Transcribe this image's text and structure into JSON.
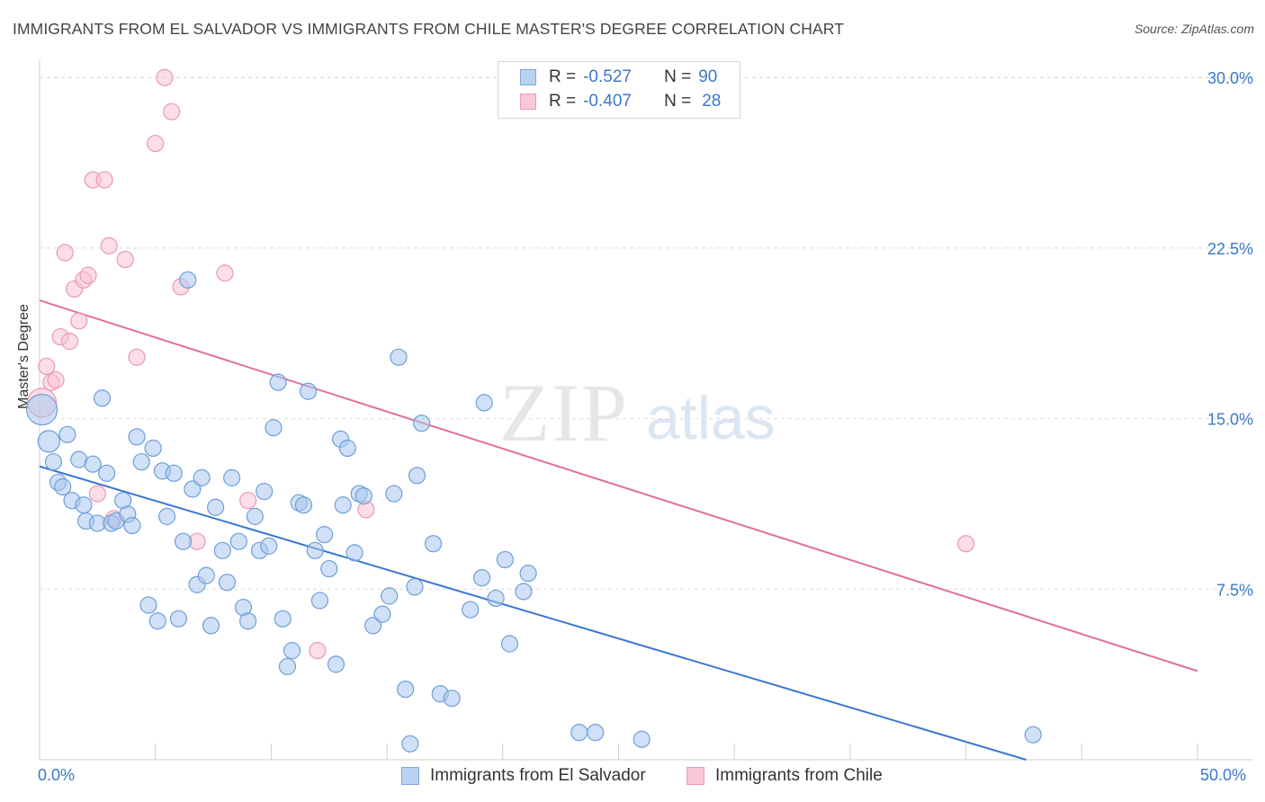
{
  "title": "IMMIGRANTS FROM EL SALVADOR VS IMMIGRANTS FROM CHILE MASTER'S DEGREE CORRELATION CHART",
  "source": "Source: ZipAtlas.com",
  "watermark": {
    "zip": "ZIP",
    "atlas": "atlas"
  },
  "legend_stats": [
    {
      "r_label": "R =",
      "r_value": "-0.527",
      "n_label": "N =",
      "n_value": "90",
      "color": "#7aa7e0"
    },
    {
      "r_label": "R =",
      "r_value": "-0.407",
      "n_label": "N =",
      "n_value": "28",
      "color": "#f09ab5"
    }
  ],
  "colors": {
    "blue_fill": "#a9c7ee",
    "blue_stroke": "#6f9fd8",
    "blue_line": "#3a78d2",
    "pink_fill": "#f7c2d3",
    "pink_stroke": "#ec98b4",
    "pink_line": "#e0709a",
    "tick_label": "#3a78c9",
    "grid": "#dcdcdc"
  },
  "chart_data": {
    "type": "scatter",
    "title": "IMMIGRANTS FROM EL SALVADOR VS IMMIGRANTS FROM CHILE MASTER'S DEGREE CORRELATION CHART",
    "xlabel": "",
    "ylabel": "Master's Degree",
    "xlim": [
      0,
      50
    ],
    "ylim": [
      0,
      30.8
    ],
    "x_tick_labels": [
      "0.0%",
      "50.0%"
    ],
    "y_ticks": [
      7.5,
      15.0,
      22.5,
      30.0
    ],
    "y_tick_labels": [
      "7.5%",
      "15.0%",
      "22.5%",
      "30.0%"
    ],
    "grid": true,
    "legend_position": "bottom",
    "series": [
      {
        "name": "Immigrants from El Salvador",
        "points": [
          [
            0.1,
            15.4
          ],
          [
            0.4,
            14.0
          ],
          [
            0.6,
            13.1
          ],
          [
            0.8,
            12.2
          ],
          [
            1.0,
            12.0
          ],
          [
            1.2,
            14.3
          ],
          [
            1.4,
            11.4
          ],
          [
            1.7,
            13.2
          ],
          [
            1.9,
            11.2
          ],
          [
            2.0,
            10.5
          ],
          [
            2.3,
            13.0
          ],
          [
            2.5,
            10.4
          ],
          [
            2.7,
            15.9
          ],
          [
            2.9,
            12.6
          ],
          [
            3.1,
            10.4
          ],
          [
            3.3,
            10.5
          ],
          [
            3.6,
            11.4
          ],
          [
            3.8,
            10.8
          ],
          [
            4.0,
            10.3
          ],
          [
            4.2,
            14.2
          ],
          [
            4.4,
            13.1
          ],
          [
            4.7,
            6.8
          ],
          [
            4.9,
            13.7
          ],
          [
            5.1,
            6.1
          ],
          [
            5.3,
            12.7
          ],
          [
            5.5,
            10.7
          ],
          [
            5.8,
            12.6
          ],
          [
            6.0,
            6.2
          ],
          [
            6.2,
            9.6
          ],
          [
            6.4,
            21.1
          ],
          [
            6.6,
            11.9
          ],
          [
            6.8,
            7.7
          ],
          [
            7.0,
            12.4
          ],
          [
            7.2,
            8.1
          ],
          [
            7.4,
            5.9
          ],
          [
            7.6,
            11.1
          ],
          [
            7.9,
            9.2
          ],
          [
            8.1,
            7.8
          ],
          [
            8.3,
            12.4
          ],
          [
            8.6,
            9.6
          ],
          [
            8.8,
            6.7
          ],
          [
            9.0,
            6.1
          ],
          [
            9.3,
            10.7
          ],
          [
            9.5,
            9.2
          ],
          [
            9.7,
            11.8
          ],
          [
            9.9,
            9.4
          ],
          [
            10.1,
            14.6
          ],
          [
            10.3,
            16.6
          ],
          [
            10.5,
            6.2
          ],
          [
            10.7,
            4.1
          ],
          [
            10.9,
            4.8
          ],
          [
            11.2,
            11.3
          ],
          [
            11.4,
            11.2
          ],
          [
            11.6,
            16.2
          ],
          [
            11.9,
            9.2
          ],
          [
            12.1,
            7.0
          ],
          [
            12.3,
            9.9
          ],
          [
            12.5,
            8.4
          ],
          [
            12.8,
            4.2
          ],
          [
            13.0,
            14.1
          ],
          [
            13.1,
            11.2
          ],
          [
            13.3,
            13.7
          ],
          [
            13.6,
            9.1
          ],
          [
            13.8,
            11.7
          ],
          [
            14.0,
            11.6
          ],
          [
            14.4,
            5.9
          ],
          [
            14.8,
            6.4
          ],
          [
            15.1,
            7.2
          ],
          [
            15.3,
            11.7
          ],
          [
            15.5,
            17.7
          ],
          [
            15.8,
            3.1
          ],
          [
            16.0,
            0.7
          ],
          [
            16.2,
            7.6
          ],
          [
            16.3,
            12.5
          ],
          [
            16.5,
            14.8
          ],
          [
            17.0,
            9.5
          ],
          [
            17.3,
            2.9
          ],
          [
            17.8,
            2.7
          ],
          [
            18.6,
            6.6
          ],
          [
            19.1,
            8.0
          ],
          [
            19.2,
            15.7
          ],
          [
            19.7,
            7.1
          ],
          [
            20.1,
            8.8
          ],
          [
            20.3,
            5.1
          ],
          [
            20.9,
            7.4
          ],
          [
            21.1,
            8.2
          ],
          [
            23.3,
            1.2
          ],
          [
            24.0,
            1.2
          ],
          [
            26.0,
            0.9
          ],
          [
            42.9,
            1.1
          ]
        ],
        "trend": [
          [
            0,
            12.9
          ],
          [
            42.6,
            0.0
          ]
        ]
      },
      {
        "name": "Immigrants from Chile",
        "points": [
          [
            0.1,
            15.7
          ],
          [
            0.3,
            17.3
          ],
          [
            0.5,
            16.6
          ],
          [
            0.7,
            16.7
          ],
          [
            0.9,
            18.6
          ],
          [
            1.1,
            22.3
          ],
          [
            1.3,
            18.4
          ],
          [
            1.5,
            20.7
          ],
          [
            1.7,
            19.3
          ],
          [
            1.9,
            21.1
          ],
          [
            2.1,
            21.3
          ],
          [
            2.3,
            25.5
          ],
          [
            2.5,
            11.7
          ],
          [
            2.8,
            25.5
          ],
          [
            3.0,
            22.6
          ],
          [
            3.2,
            10.6
          ],
          [
            3.7,
            22.0
          ],
          [
            4.2,
            17.7
          ],
          [
            5.0,
            27.1
          ],
          [
            5.4,
            30.0
          ],
          [
            5.7,
            28.5
          ],
          [
            6.1,
            20.8
          ],
          [
            6.8,
            9.6
          ],
          [
            8.0,
            21.4
          ],
          [
            9.0,
            11.4
          ],
          [
            12.0,
            4.8
          ],
          [
            14.1,
            11.0
          ],
          [
            40.0,
            9.5
          ]
        ],
        "trend": [
          [
            0,
            20.2
          ],
          [
            50,
            3.9
          ]
        ]
      }
    ]
  }
}
